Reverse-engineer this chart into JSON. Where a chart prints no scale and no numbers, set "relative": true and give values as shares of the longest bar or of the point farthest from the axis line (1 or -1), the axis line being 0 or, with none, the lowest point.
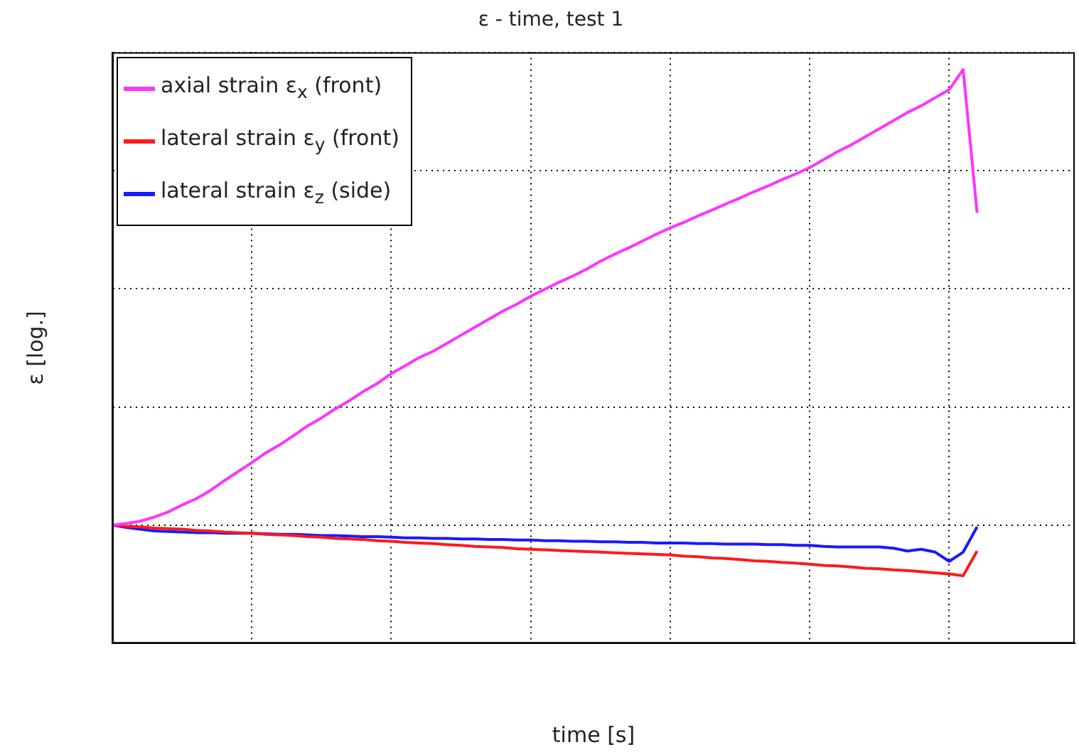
{
  "chart_data": {
    "type": "line",
    "title": "ε - time, test 1",
    "xlabel": "time [s]",
    "ylabel": "ε [log.]",
    "relative": true,
    "grid": true,
    "legend": "top left",
    "marker": "none",
    "line_style": "solid",
    "categories": [
      null,
      null,
      null,
      null,
      null,
      null,
      null,
      null,
      null,
      null,
      null,
      null,
      null,
      null,
      null,
      null,
      null,
      null,
      null,
      null,
      null,
      null,
      null,
      null,
      null,
      null,
      null,
      null,
      null,
      null,
      null,
      null,
      null,
      null,
      null,
      null,
      null,
      null,
      null,
      null,
      null,
      null,
      null,
      null,
      null,
      null,
      null,
      null,
      null,
      null,
      null,
      null,
      null,
      null,
      null,
      null,
      null,
      null,
      null,
      null,
      null,
      null,
      null,
      null,
      null,
      null,
      null,
      null,
      null,
      null
    ],
    "series": [
      {
        "name": "axial strain ε$_{x}$ (front)",
        "color": "#ff33ff",
        "values": [
          0.206,
          0.209,
          0.213,
          0.22,
          0.229,
          0.241,
          0.252,
          0.266,
          0.283,
          0.299,
          0.315,
          0.332,
          0.346,
          0.362,
          0.379,
          0.393,
          0.409,
          0.423,
          0.439,
          0.453,
          0.47,
          0.484,
          0.498,
          0.509,
          0.523,
          0.537,
          0.551,
          0.565,
          0.579,
          0.591,
          0.605,
          0.617,
          0.629,
          0.64,
          0.652,
          0.666,
          0.678,
          0.689,
          0.701,
          0.713,
          0.724,
          0.734,
          0.745,
          0.755,
          0.766,
          0.776,
          0.787,
          0.797,
          0.808,
          0.818,
          0.829,
          0.843,
          0.857,
          0.869,
          0.883,
          0.897,
          0.911,
          0.925,
          0.937,
          0.951,
          0.965,
          1,
          0.75,
          null,
          null,
          null,
          null,
          null,
          null,
          null
        ]
      },
      {
        "name": "lateral strain ε$_{y}$ (front)",
        "color": "#ff1a1a",
        "values": [
          0.206,
          0.204,
          0.203,
          0.201,
          0.2,
          0.199,
          0.197,
          0.196,
          0.194,
          0.193,
          0.192,
          0.19,
          0.189,
          0.188,
          0.186,
          0.185,
          0.183,
          0.182,
          0.181,
          0.179,
          0.178,
          0.176,
          0.175,
          0.174,
          0.172,
          0.171,
          0.169,
          0.168,
          0.167,
          0.165,
          0.164,
          0.163,
          0.162,
          0.161,
          0.16,
          0.159,
          0.158,
          0.157,
          0.156,
          0.155,
          0.154,
          0.152,
          0.151,
          0.149,
          0.148,
          0.146,
          0.144,
          0.143,
          0.141,
          0.14,
          0.138,
          0.136,
          0.135,
          0.133,
          0.131,
          0.13,
          0.128,
          0.127,
          0.125,
          0.123,
          0.121,
          0.118,
          0.161,
          null,
          null,
          null,
          null,
          null,
          null,
          null
        ]
      },
      {
        "name": "lateral strain ε$_{z}$ (side)",
        "color": "#1a1aff",
        "values": [
          0.206,
          0.202,
          0.199,
          0.196,
          0.195,
          0.194,
          0.193,
          0.193,
          0.192,
          0.192,
          0.192,
          0.191,
          0.19,
          0.19,
          0.189,
          0.188,
          0.188,
          0.187,
          0.186,
          0.186,
          0.185,
          0.184,
          0.184,
          0.183,
          0.183,
          0.182,
          0.182,
          0.181,
          0.181,
          0.18,
          0.18,
          0.179,
          0.179,
          0.178,
          0.178,
          0.177,
          0.177,
          0.176,
          0.176,
          0.175,
          0.175,
          0.175,
          0.174,
          0.174,
          0.173,
          0.173,
          0.173,
          0.172,
          0.172,
          0.171,
          0.171,
          0.169,
          0.168,
          0.168,
          0.168,
          0.168,
          0.166,
          0.161,
          0.164,
          0.159,
          0.143,
          0.159,
          0.203,
          null,
          null,
          null,
          null,
          null,
          null,
          null
        ]
      }
    ]
  }
}
